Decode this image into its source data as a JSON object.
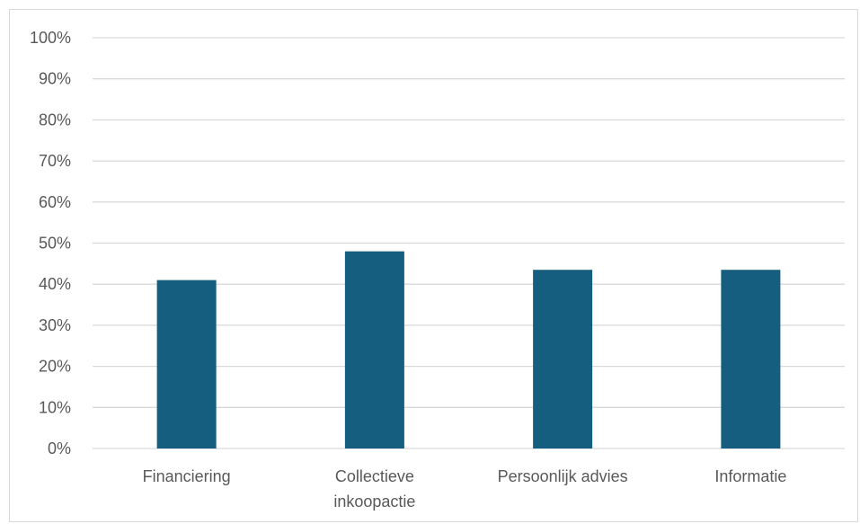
{
  "chart_data": {
    "type": "bar",
    "categories": [
      "Financiering",
      "Collectieve inkoopactie",
      "Persoonlijk advies",
      "Informatie"
    ],
    "category_label_lines": [
      [
        "Financiering"
      ],
      [
        "Collectieve",
        "inkoopactie"
      ],
      [
        "Persoonlijk advies"
      ],
      [
        "Informatie"
      ]
    ],
    "values": [
      41,
      48,
      43.5,
      43.5
    ],
    "value_unit": "%",
    "title": "",
    "xlabel": "",
    "ylabel": "",
    "ylim": [
      0,
      100
    ],
    "ytick_step": 10,
    "ytick_labels": [
      "0%",
      "10%",
      "20%",
      "30%",
      "40%",
      "50%",
      "60%",
      "70%",
      "80%",
      "90%",
      "100%"
    ],
    "grid": true,
    "legend": "none",
    "colors": {
      "bar": "#165e80",
      "gridline": "#d9d9d9",
      "axis_text": "#595959",
      "frame": "#d9d9d9"
    }
  }
}
